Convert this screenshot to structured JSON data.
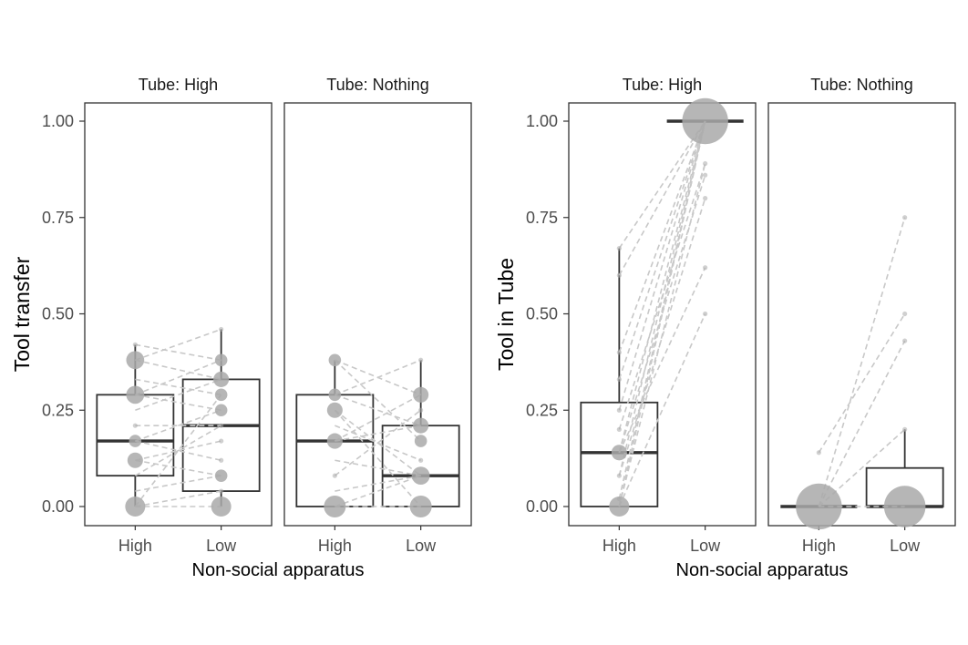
{
  "colors": {
    "panel_border": "#333333",
    "box": "#333333",
    "point": "#a9a9a9",
    "line": "#c8c8c8"
  },
  "chart_data": [
    {
      "type": "boxplot",
      "ylabel": "Tool transfer",
      "xlabel": "Non-social apparatus",
      "ylim": [
        0,
        1
      ],
      "yticks": [
        "0.00",
        "0.25",
        "0.50",
        "0.75",
        "1.00"
      ],
      "categories": [
        "High",
        "Low"
      ],
      "facets": [
        {
          "strip": "Tube: High",
          "boxes": [
            {
              "category": "High",
              "q1": 0.08,
              "median": 0.17,
              "q3": 0.29,
              "whisker_low": 0.0,
              "whisker_high": 0.42
            },
            {
              "category": "Low",
              "q1": 0.04,
              "median": 0.21,
              "q3": 0.33,
              "whisker_low": 0.0,
              "whisker_high": 0.46
            }
          ],
          "points": [
            {
              "category": "High",
              "y": 0.0,
              "count": 5
            },
            {
              "category": "High",
              "y": 0.12,
              "count": 3
            },
            {
              "category": "High",
              "y": 0.17,
              "count": 2
            },
            {
              "category": "High",
              "y": 0.21,
              "count": 1
            },
            {
              "category": "High",
              "y": 0.29,
              "count": 4
            },
            {
              "category": "High",
              "y": 0.38,
              "count": 4
            },
            {
              "category": "High",
              "y": 0.42,
              "count": 1
            },
            {
              "category": "Low",
              "y": 0.0,
              "count": 5
            },
            {
              "category": "Low",
              "y": 0.04,
              "count": 1
            },
            {
              "category": "Low",
              "y": 0.08,
              "count": 2
            },
            {
              "category": "Low",
              "y": 0.12,
              "count": 1
            },
            {
              "category": "Low",
              "y": 0.17,
              "count": 1
            },
            {
              "category": "Low",
              "y": 0.21,
              "count": 1
            },
            {
              "category": "Low",
              "y": 0.25,
              "count": 2
            },
            {
              "category": "Low",
              "y": 0.29,
              "count": 2
            },
            {
              "category": "Low",
              "y": 0.33,
              "count": 3
            },
            {
              "category": "Low",
              "y": 0.38,
              "count": 2
            },
            {
              "category": "Low",
              "y": 0.46,
              "count": 1
            }
          ],
          "pairs": [
            [
              0.42,
              0.38
            ],
            [
              0.38,
              0.46
            ],
            [
              0.38,
              0.33
            ],
            [
              0.33,
              0.29
            ],
            [
              0.29,
              0.38
            ],
            [
              0.29,
              0.25
            ],
            [
              0.25,
              0.33
            ],
            [
              0.21,
              0.21
            ],
            [
              0.17,
              0.25
            ],
            [
              0.17,
              0.12
            ],
            [
              0.12,
              0.17
            ],
            [
              0.12,
              0.08
            ],
            [
              0.08,
              0.21
            ],
            [
              0.04,
              0.08
            ],
            [
              0.0,
              0.04
            ],
            [
              0.0,
              0.0
            ],
            [
              0.0,
              0.29
            ]
          ]
        },
        {
          "strip": "Tube: Nothing",
          "boxes": [
            {
              "category": "High",
              "q1": 0.0,
              "median": 0.17,
              "q3": 0.29,
              "whisker_low": 0.0,
              "whisker_high": 0.38
            },
            {
              "category": "Low",
              "q1": 0.0,
              "median": 0.08,
              "q3": 0.21,
              "whisker_low": 0.0,
              "whisker_high": 0.38
            }
          ],
          "points": [
            {
              "category": "High",
              "y": 0.0,
              "count": 6
            },
            {
              "category": "High",
              "y": 0.08,
              "count": 1
            },
            {
              "category": "High",
              "y": 0.17,
              "count": 3
            },
            {
              "category": "High",
              "y": 0.25,
              "count": 3
            },
            {
              "category": "High",
              "y": 0.29,
              "count": 2
            },
            {
              "category": "High",
              "y": 0.38,
              "count": 2
            },
            {
              "category": "Low",
              "y": 0.0,
              "count": 6
            },
            {
              "category": "Low",
              "y": 0.08,
              "count": 4
            },
            {
              "category": "Low",
              "y": 0.12,
              "count": 1
            },
            {
              "category": "Low",
              "y": 0.17,
              "count": 2
            },
            {
              "category": "Low",
              "y": 0.21,
              "count": 3
            },
            {
              "category": "Low",
              "y": 0.25,
              "count": 1
            },
            {
              "category": "Low",
              "y": 0.29,
              "count": 3
            },
            {
              "category": "Low",
              "y": 0.38,
              "count": 1
            }
          ],
          "pairs": [
            [
              0.38,
              0.29
            ],
            [
              0.38,
              0.17
            ],
            [
              0.29,
              0.38
            ],
            [
              0.29,
              0.21
            ],
            [
              0.25,
              0.08
            ],
            [
              0.25,
              0.0
            ],
            [
              0.21,
              0.12
            ],
            [
              0.17,
              0.21
            ],
            [
              0.17,
              0.29
            ],
            [
              0.12,
              0.08
            ],
            [
              0.08,
              0.25
            ],
            [
              0.04,
              0.08
            ],
            [
              0.0,
              0.0
            ],
            [
              0.0,
              0.08
            ]
          ]
        }
      ]
    },
    {
      "type": "boxplot",
      "ylabel": "Tool in Tube",
      "xlabel": "Non-social apparatus",
      "ylim": [
        0,
        1
      ],
      "yticks": [
        "0.00",
        "0.25",
        "0.50",
        "0.75",
        "1.00"
      ],
      "categories": [
        "High",
        "Low"
      ],
      "facets": [
        {
          "strip": "Tube: High",
          "boxes": [
            {
              "category": "High",
              "q1": 0.0,
              "median": 0.14,
              "q3": 0.27,
              "whisker_low": 0.0,
              "whisker_high": 0.67
            },
            {
              "category": "Low",
              "q1": 1.0,
              "median": 1.0,
              "q3": 1.0,
              "whisker_low": 1.0,
              "whisker_high": 1.0
            }
          ],
          "points": [
            {
              "category": "High",
              "y": 0.0,
              "count": 5
            },
            {
              "category": "High",
              "y": 0.02,
              "count": 1
            },
            {
              "category": "High",
              "y": 0.08,
              "count": 1
            },
            {
              "category": "High",
              "y": 0.14,
              "count": 3
            },
            {
              "category": "High",
              "y": 0.2,
              "count": 1
            },
            {
              "category": "High",
              "y": 0.25,
              "count": 1
            },
            {
              "category": "High",
              "y": 0.33,
              "count": 1
            },
            {
              "category": "High",
              "y": 0.4,
              "count": 1
            },
            {
              "category": "High",
              "y": 0.6,
              "count": 1
            },
            {
              "category": "High",
              "y": 0.67,
              "count": 1
            },
            {
              "category": "Low",
              "y": 0.5,
              "count": 1
            },
            {
              "category": "Low",
              "y": 0.62,
              "count": 1
            },
            {
              "category": "Low",
              "y": 0.8,
              "count": 1
            },
            {
              "category": "Low",
              "y": 0.86,
              "count": 1
            },
            {
              "category": "Low",
              "y": 0.89,
              "count": 1
            },
            {
              "category": "Low",
              "y": 1.0,
              "count": 30
            }
          ],
          "pairs": [
            [
              0.67,
              1.0
            ],
            [
              0.6,
              1.0
            ],
            [
              0.4,
              1.0
            ],
            [
              0.33,
              1.0
            ],
            [
              0.25,
              1.0
            ],
            [
              0.2,
              0.89
            ],
            [
              0.14,
              1.0
            ],
            [
              0.14,
              0.86
            ],
            [
              0.14,
              0.62
            ],
            [
              0.08,
              1.0
            ],
            [
              0.08,
              0.8
            ],
            [
              0.02,
              1.0
            ],
            [
              0.0,
              1.0
            ],
            [
              0.0,
              0.5
            ],
            [
              0.0,
              0.89
            ],
            [
              0.0,
              1.0
            ]
          ]
        },
        {
          "strip": "Tube: Nothing",
          "boxes": [
            {
              "category": "High",
              "q1": 0.0,
              "median": 0.0,
              "q3": 0.0,
              "whisker_low": 0.0,
              "whisker_high": 0.0
            },
            {
              "category": "Low",
              "q1": 0.0,
              "median": 0.0,
              "q3": 0.1,
              "whisker_low": 0.0,
              "whisker_high": 0.2
            }
          ],
          "points": [
            {
              "category": "High",
              "y": 0.0,
              "count": 30
            },
            {
              "category": "High",
              "y": 0.14,
              "count": 1
            },
            {
              "category": "Low",
              "y": 0.0,
              "count": 24
            },
            {
              "category": "Low",
              "y": 0.2,
              "count": 1
            },
            {
              "category": "Low",
              "y": 0.43,
              "count": 1
            },
            {
              "category": "Low",
              "y": 0.5,
              "count": 1
            },
            {
              "category": "Low",
              "y": 0.75,
              "count": 1
            }
          ],
          "pairs": [
            [
              0.14,
              0.5
            ],
            [
              0.0,
              0.75
            ],
            [
              0.0,
              0.43
            ],
            [
              0.0,
              0.2
            ],
            [
              0.0,
              0.0
            ]
          ]
        }
      ]
    }
  ]
}
